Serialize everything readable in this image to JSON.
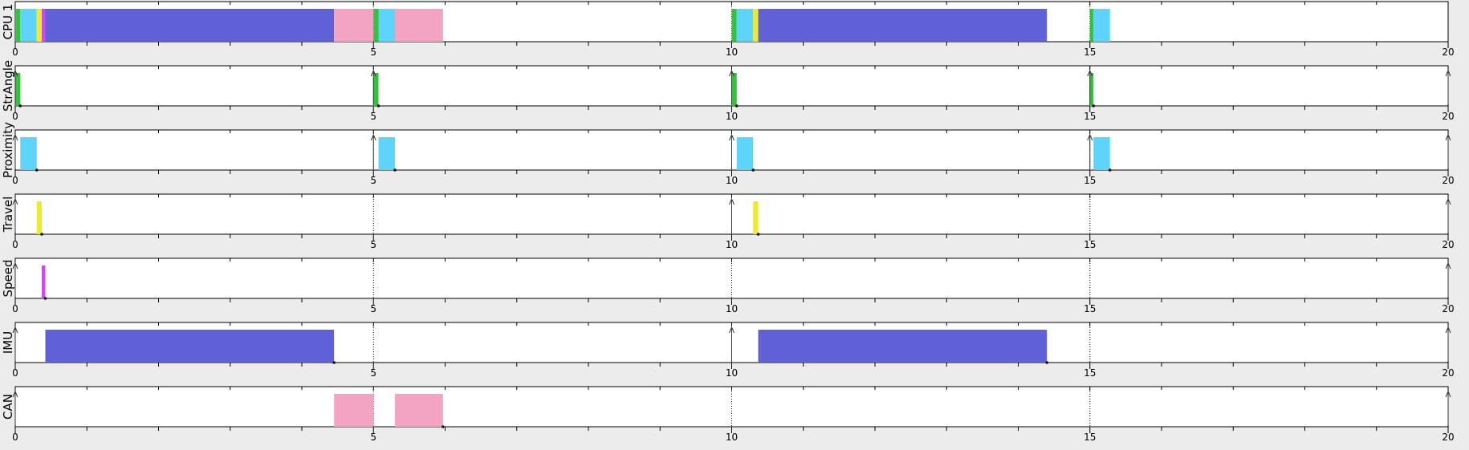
{
  "chart_data": {
    "type": "gantt",
    "x_range": [
      0,
      20
    ],
    "x_ticks": [
      0,
      5,
      10,
      15,
      20
    ],
    "x_tick_labels": [
      "0",
      "5",
      "10",
      "15",
      "20"
    ],
    "grid": "dotted vertical lines at 5, 10, 15",
    "task_colors": {
      "StrAngle": "#33c13e",
      "Proximity": "#5fd4fa",
      "Travel": "#f0ea2f",
      "Speed": "#c94bf0",
      "IMU": "#6060d8",
      "CAN": "#f2a4c2"
    },
    "lanes": [
      {
        "label": "CPU 1",
        "bars": [
          {
            "task": "StrAngle",
            "start": 0.0,
            "end": 0.07
          },
          {
            "task": "Proximity",
            "start": 0.07,
            "end": 0.3
          },
          {
            "task": "Travel",
            "start": 0.3,
            "end": 0.37
          },
          {
            "task": "Speed",
            "start": 0.37,
            "end": 0.42
          },
          {
            "task": "IMU",
            "start": 0.42,
            "end": 4.45
          },
          {
            "task": "CAN",
            "start": 4.45,
            "end": 5.0
          },
          {
            "task": "StrAngle",
            "start": 5.0,
            "end": 5.07
          },
          {
            "task": "Proximity",
            "start": 5.07,
            "end": 5.3
          },
          {
            "task": "CAN",
            "start": 5.3,
            "end": 5.97
          },
          {
            "task": "StrAngle",
            "start": 10.0,
            "end": 10.07
          },
          {
            "task": "Proximity",
            "start": 10.07,
            "end": 10.3
          },
          {
            "task": "Travel",
            "start": 10.3,
            "end": 10.37
          },
          {
            "task": "IMU",
            "start": 10.37,
            "end": 14.4
          },
          {
            "task": "StrAngle",
            "start": 15.0,
            "end": 15.05
          },
          {
            "task": "Proximity",
            "start": 15.05,
            "end": 15.28
          }
        ],
        "arrivals": [],
        "deadlines": []
      },
      {
        "label": "StrAngle",
        "bars": [
          {
            "task": "StrAngle",
            "start": 0.0,
            "end": 0.07
          },
          {
            "task": "StrAngle",
            "start": 5.0,
            "end": 5.07
          },
          {
            "task": "StrAngle",
            "start": 10.0,
            "end": 10.07
          },
          {
            "task": "StrAngle",
            "start": 15.0,
            "end": 15.05
          }
        ],
        "arrivals": [
          0,
          5,
          10,
          15,
          20
        ],
        "deadlines": [
          0.07,
          5.07,
          10.07,
          15.05
        ]
      },
      {
        "label": "Proximity",
        "bars": [
          {
            "task": "Proximity",
            "start": 0.07,
            "end": 0.3
          },
          {
            "task": "Proximity",
            "start": 5.07,
            "end": 5.3
          },
          {
            "task": "Proximity",
            "start": 10.07,
            "end": 10.3
          },
          {
            "task": "Proximity",
            "start": 15.05,
            "end": 15.28
          }
        ],
        "arrivals": [
          0,
          5,
          10,
          15,
          20
        ],
        "deadlines": [
          0.3,
          5.3,
          10.3,
          15.28
        ]
      },
      {
        "label": "Travel",
        "bars": [
          {
            "task": "Travel",
            "start": 0.3,
            "end": 0.37
          },
          {
            "task": "Travel",
            "start": 10.3,
            "end": 10.37
          }
        ],
        "arrivals": [
          0,
          10,
          20
        ],
        "deadlines": [
          0.37,
          10.37
        ]
      },
      {
        "label": "Speed",
        "bars": [
          {
            "task": "Speed",
            "start": 0.37,
            "end": 0.42
          }
        ],
        "arrivals": [
          0,
          20
        ],
        "deadlines": [
          0.42
        ]
      },
      {
        "label": "IMU",
        "bars": [
          {
            "task": "IMU",
            "start": 0.42,
            "end": 4.45
          },
          {
            "task": "IMU",
            "start": 10.37,
            "end": 14.4
          }
        ],
        "arrivals": [
          0,
          10,
          20
        ],
        "deadlines": [
          4.45,
          14.4
        ]
      },
      {
        "label": "CAN",
        "bars": [
          {
            "task": "CAN",
            "start": 4.45,
            "end": 5.0
          },
          {
            "task": "CAN",
            "start": 5.3,
            "end": 5.97
          }
        ],
        "arrivals": [
          0,
          20
        ],
        "deadlines": [
          5.97
        ]
      }
    ]
  }
}
